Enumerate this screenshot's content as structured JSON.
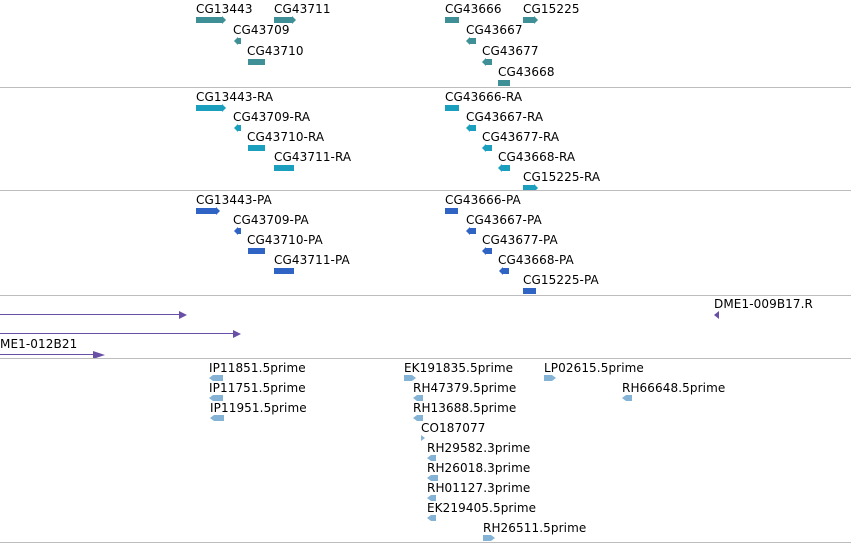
{
  "colors": {
    "gene": "#3f8f96",
    "transcript": "#1a9fbf",
    "protein": "#2f63c4",
    "clone": "#6a4fa6",
    "est": "#84b3d6",
    "separator": "#bdbdbd"
  },
  "tracks": {
    "genes": {
      "features": [
        {
          "label": "CG13443"
        },
        {
          "label": "CG43711"
        },
        {
          "label": "CG43709"
        },
        {
          "label": "CG43710"
        },
        {
          "label": "CG43666"
        },
        {
          "label": "CG15225"
        },
        {
          "label": "CG43667"
        },
        {
          "label": "CG43677"
        },
        {
          "label": "CG43668"
        }
      ]
    },
    "transcripts": {
      "features": [
        {
          "label": "CG13443-RA"
        },
        {
          "label": "CG43709-RA"
        },
        {
          "label": "CG43710-RA"
        },
        {
          "label": "CG43711-RA"
        },
        {
          "label": "CG43666-RA"
        },
        {
          "label": "CG43667-RA"
        },
        {
          "label": "CG43677-RA"
        },
        {
          "label": "CG43668-RA"
        },
        {
          "label": "CG15225-RA"
        }
      ]
    },
    "proteins": {
      "features": [
        {
          "label": "CG13443-PA"
        },
        {
          "label": "CG43709-PA"
        },
        {
          "label": "CG43710-PA"
        },
        {
          "label": "CG43711-PA"
        },
        {
          "label": "CG43666-PA"
        },
        {
          "label": "CG43667-PA"
        },
        {
          "label": "CG43677-PA"
        },
        {
          "label": "CG43668-PA"
        },
        {
          "label": "CG15225-PA"
        }
      ]
    },
    "clones": {
      "features": [
        {
          "label": ""
        },
        {
          "label": ""
        },
        {
          "label": "ME1-012B21"
        },
        {
          "label": "DME1-009B17.R"
        }
      ]
    },
    "ests": {
      "features": [
        {
          "label": "IP11851.5prime"
        },
        {
          "label": "IP11751.5prime"
        },
        {
          "label": "IP11951.5prime"
        },
        {
          "label": "EK191835.5prime"
        },
        {
          "label": "RH47379.5prime"
        },
        {
          "label": "RH13688.5prime"
        },
        {
          "label": "CO187077"
        },
        {
          "label": "RH29582.3prime"
        },
        {
          "label": "RH26018.3prime"
        },
        {
          "label": "RH01127.3prime"
        },
        {
          "label": "EK219405.5prime"
        },
        {
          "label": "RH26511.5prime"
        },
        {
          "label": "LP02615.5prime"
        },
        {
          "label": "RH66648.5prime"
        }
      ]
    }
  }
}
